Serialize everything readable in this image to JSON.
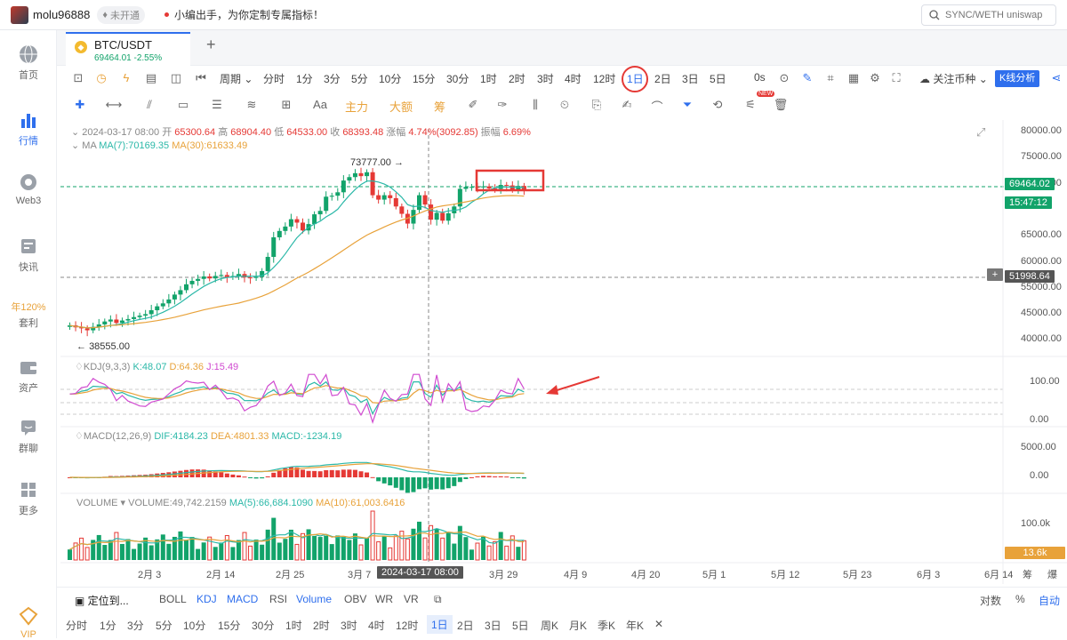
{
  "topbar": {
    "username": "molu96888",
    "vip_status": "未开通",
    "notice": "小编出手，为你定制专属指标！",
    "search_placeholder": "SYNC/WETH uniswap"
  },
  "sidebar": {
    "items": [
      {
        "label": "首页",
        "icon": "globe-icon"
      },
      {
        "label": "行情",
        "icon": "bar-chart-icon",
        "active": true
      },
      {
        "label": "Web3",
        "icon": "web3-icon"
      },
      {
        "label": "快讯",
        "icon": "news-icon"
      },
      {
        "label": "年120%",
        "icon": ""
      },
      {
        "label": "套利",
        "icon": ""
      },
      {
        "label": "资产",
        "icon": "wallet-icon"
      },
      {
        "label": "群聊",
        "icon": "chat-icon"
      },
      {
        "label": "更多",
        "icon": "grid-icon"
      },
      {
        "label": "VIP",
        "icon": "vip-icon"
      }
    ]
  },
  "tab": {
    "symbol": "BTC/USDT",
    "price": "69464.01",
    "change": "-2.55%"
  },
  "toolbar": {
    "period_label": "周期",
    "intervals": [
      "分时",
      "1分",
      "3分",
      "5分",
      "10分",
      "15分",
      "30分",
      "1时",
      "2时",
      "3时",
      "4时",
      "12时",
      "1日",
      "2日",
      "3日",
      "5日"
    ],
    "active_interval": "1日",
    "countdown": "0s",
    "watch_label": "关注币种",
    "analysis_label": "K线分析"
  },
  "toolbar2": {
    "labels": [
      "Aa",
      "主力",
      "大额",
      "筹"
    ],
    "new_badge": "NEW"
  },
  "chart": {
    "date": "2024-03-17 08:00",
    "open_label": "开",
    "open": "65300.64",
    "high_label": "高",
    "high": "68904.40",
    "low_label": "低",
    "low": "64533.00",
    "close_label": "收",
    "close": "68393.48",
    "change_label": "涨幅",
    "change": "4.74%(3092.85)",
    "amp_label": "振幅",
    "amp": "6.69%",
    "ma_label": "MA",
    "ma7": "MA(7):70169.35",
    "ma30": "MA(30):61633.49",
    "kdj_label": "KDJ(9,3,3)",
    "k": "K:48.07",
    "d": "D:64.36",
    "j": "J:15.49",
    "macd_label": "MACD(12,26,9)",
    "dif": "DIF:4184.23",
    "dea": "DEA:4801.33",
    "macd": "MACD:-1234.19",
    "vol_label": "VOLUME",
    "vol": "VOLUME:49,742.2159",
    "vol_ma5": "MA(5):66,684.1090",
    "vol_ma10": "MA(10):61,003.6416",
    "max_label": "73777.00",
    "min_label": "38555.00",
    "price_pill": "69464.02",
    "timer_pill": "15:47:12",
    "cross_pill": "51998.64",
    "vol_pill": "13.6k",
    "cross_date": "2024-03-17 08:00"
  },
  "chart_data": {
    "type": "candlestick",
    "price_axis": [
      "80000.00",
      "75000.00",
      "70000.00",
      "65000.00",
      "60000.00",
      "55000.00",
      "50000.00",
      "45000.00",
      "40000.00"
    ],
    "kdj_axis": [
      "100.00",
      "0.00"
    ],
    "macd_axis": [
      "5000.00",
      "0.00"
    ],
    "vol_axis": [
      "100.0k"
    ],
    "x_labels": [
      "2月 3",
      "2月 14",
      "2月 25",
      "3月 7",
      "3月 29",
      "4月 9",
      "4月 20",
      "5月 1",
      "5月 12",
      "5月 23",
      "6月 3",
      "6月 14"
    ],
    "closes": [
      41800,
      41400,
      41200,
      40800,
      41500,
      42000,
      42600,
      43000,
      42300,
      42800,
      43100,
      43500,
      43800,
      44100,
      44900,
      45700,
      46300,
      47100,
      48100,
      49000,
      50200,
      50900,
      51300,
      51800,
      51400,
      51900,
      52100,
      51700,
      51900,
      52300,
      51600,
      51500,
      51700,
      52900,
      55800,
      59800,
      61100,
      62000,
      63500,
      62800,
      61200,
      62500,
      64500,
      65200,
      68100,
      68300,
      69000,
      71400,
      72100,
      72900,
      72300,
      73100,
      68400,
      67500,
      68400,
      67800,
      66100,
      64600,
      62600,
      65400,
      68400,
      66500,
      63400,
      64800,
      63200,
      64700,
      66100,
      69700,
      70100,
      70100,
      70000,
      70200,
      69800,
      69700,
      70500,
      70400,
      69500,
      70300,
      69464
    ]
  },
  "bottom": {
    "locate": "定位到...",
    "indicators": [
      "BOLL",
      "KDJ",
      "MACD",
      "RSI",
      "Volume",
      "OBV",
      "WR",
      "VR"
    ],
    "right": [
      "对数",
      "%",
      "自动"
    ],
    "timeframes": [
      "分时",
      "1分",
      "3分",
      "5分",
      "10分",
      "15分",
      "30分",
      "1时",
      "2时",
      "3时",
      "4时",
      "12时",
      "1日",
      "2日",
      "3日",
      "5日",
      "周K",
      "月K",
      "季K",
      "年K"
    ],
    "active_timeframe": "1日"
  }
}
